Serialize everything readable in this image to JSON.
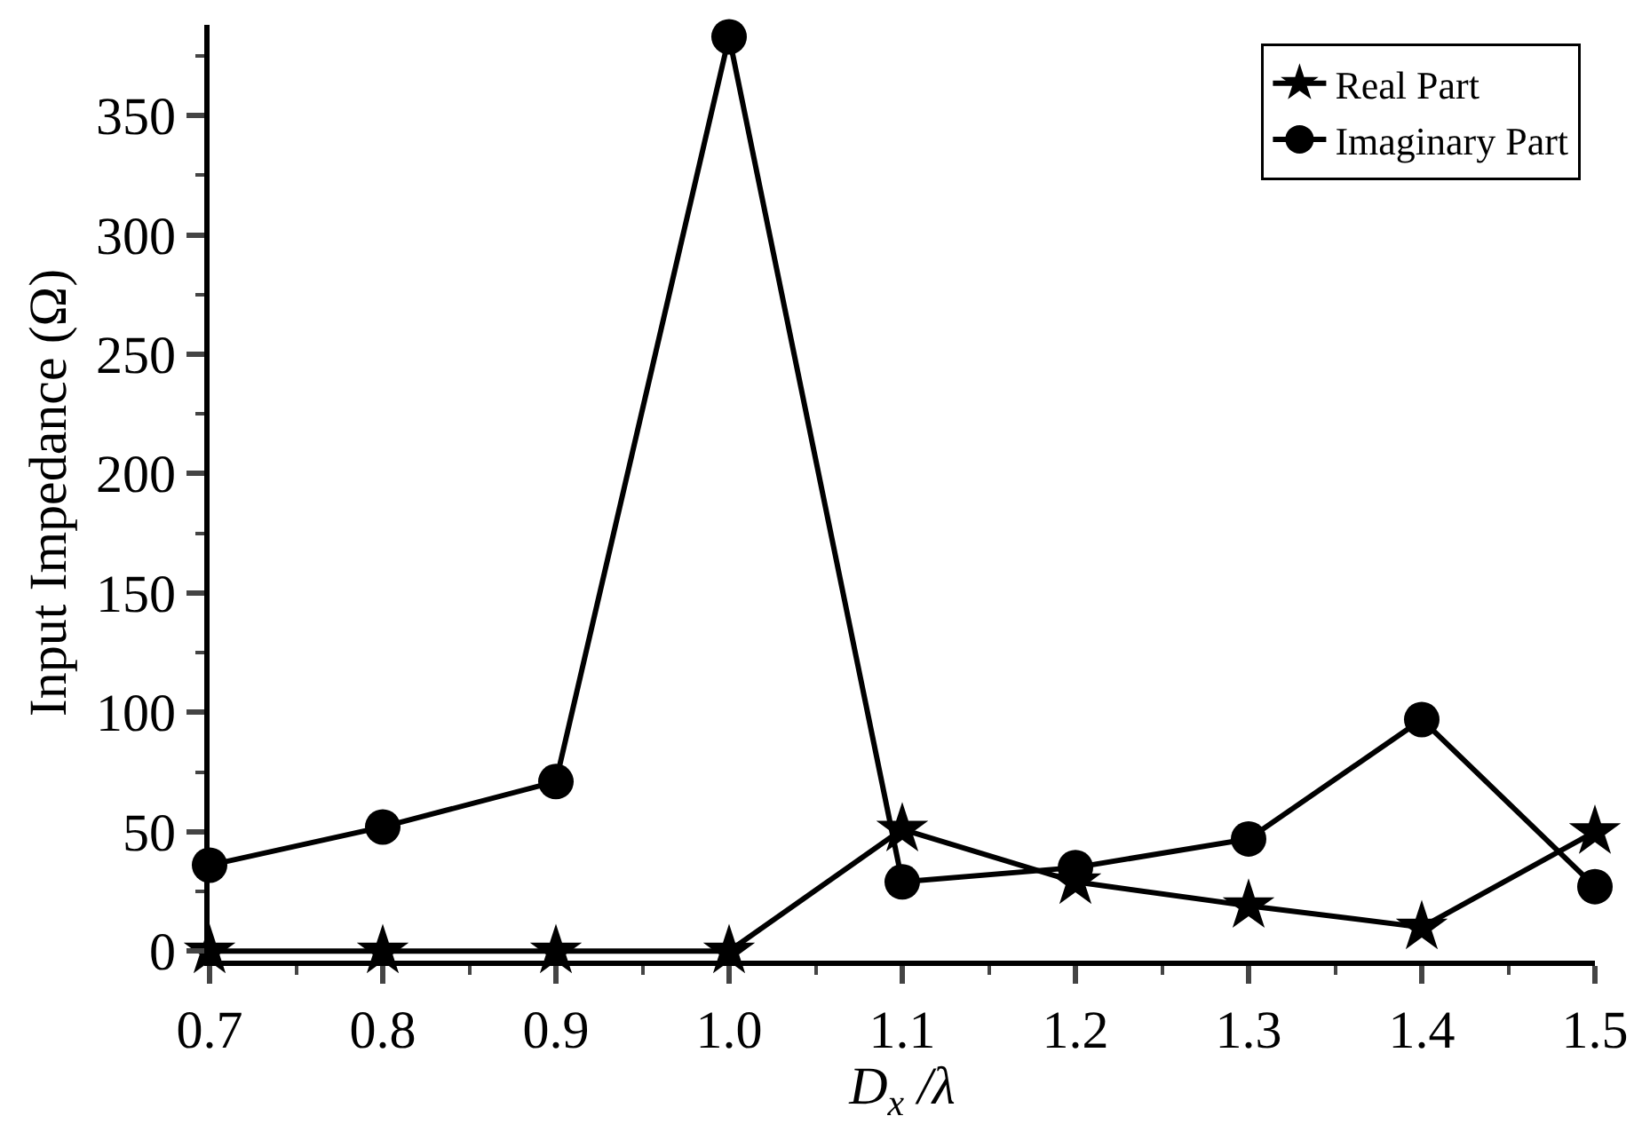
{
  "chart_data": {
    "type": "line",
    "xlabel": "D$_{x}$ /λ",
    "ylabel": "Input Impedance (Ω)",
    "x": [
      0.7,
      0.8,
      0.9,
      1.0,
      1.1,
      1.2,
      1.3,
      1.4,
      1.5
    ],
    "series": [
      {
        "name": "Real Part",
        "color": "#000000",
        "marker": "star",
        "values": [
          0,
          0,
          0,
          0,
          51,
          29,
          19,
          10,
          50
        ]
      },
      {
        "name": "Imaginary Part",
        "color": "#000000",
        "marker": "circle",
        "values": [
          36,
          52,
          71,
          383,
          29,
          35,
          47,
          97,
          27
        ]
      }
    ],
    "xlim": [
      0.7,
      1.5
    ],
    "xticks": [
      {
        "value": 0.7,
        "label": "0.7"
      },
      {
        "value": 0.8,
        "label": "0.8"
      },
      {
        "value": 0.9,
        "label": "0.9"
      },
      {
        "value": 1.0,
        "label": "1.0"
      },
      {
        "value": 1.1,
        "label": "1.1"
      },
      {
        "value": 1.2,
        "label": "1.2"
      },
      {
        "value": 1.3,
        "label": "1.3"
      },
      {
        "value": 1.4,
        "label": "1.4"
      },
      {
        "value": 1.5,
        "label": "1.5"
      }
    ],
    "ylim": [
      -4,
      388
    ],
    "yticks": [
      0,
      50,
      100,
      150,
      200,
      250,
      300,
      350
    ],
    "grid": false,
    "legend": "top right",
    "line_style": "solid"
  }
}
